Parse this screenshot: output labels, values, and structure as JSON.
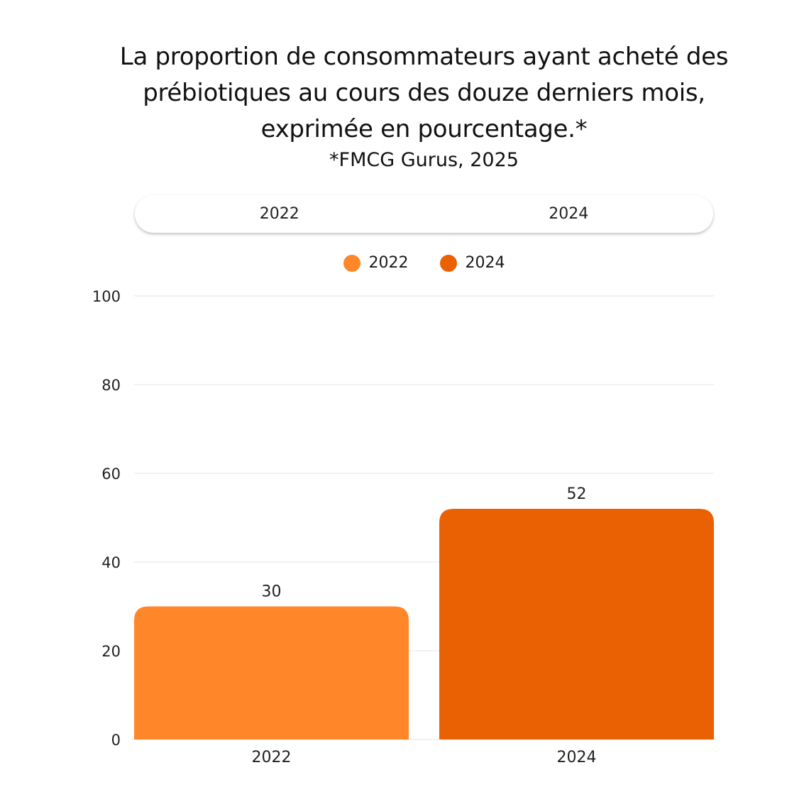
{
  "chart_data": {
    "type": "bar",
    "title": "La proportion de consommateurs ayant acheté des prébiotiques au cours des douze derniers mois, exprimée en pourcentage.*",
    "subtitle": "*FMCG Gurus, 2025",
    "categories": [
      "2022",
      "2024"
    ],
    "values": [
      30,
      52
    ],
    "colors": [
      "#FF8629",
      "#EA6103"
    ],
    "ylim": [
      0,
      100
    ],
    "yticks": [
      0,
      20,
      40,
      60,
      80,
      100
    ],
    "grid": true,
    "legend": {
      "placement": "top",
      "entries": [
        "2022",
        "2024"
      ]
    },
    "data_labels": true
  },
  "tabs": [
    {
      "label": "2022"
    },
    {
      "label": "2024"
    }
  ]
}
